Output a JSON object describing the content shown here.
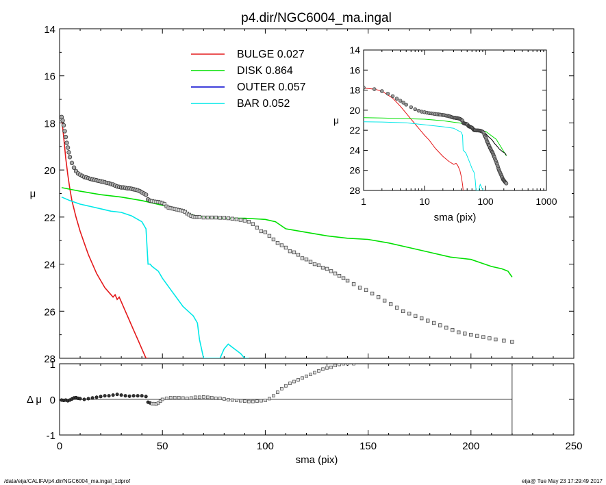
{
  "title": "p4.dir/NGC6004_ma.ingal",
  "footer_left": "/data/eija/CALIFA/p4.dir/NGC6004_ma.ingal_1dprof",
  "footer_right": "eija@  Tue May 23 17:29:49 2017",
  "chart_data": [
    {
      "id": "main",
      "type": "line",
      "xlabel": "",
      "ylabel": "μ",
      "xlim": [
        0,
        250
      ],
      "ylim": [
        28,
        14
      ],
      "yticks": [
        14,
        16,
        18,
        20,
        22,
        24,
        26,
        28
      ],
      "legend_position": "top-center",
      "series": [
        {
          "name": "BULGE",
          "fraction": "0.027",
          "color": "#e41a1c",
          "x": [
            1,
            2,
            3,
            4,
            5,
            6,
            8,
            10,
            12,
            14,
            16,
            18,
            20,
            22,
            24,
            26,
            27,
            28,
            29,
            30,
            32,
            34,
            36,
            38,
            40,
            42,
            43
          ],
          "y": [
            17.8,
            18.6,
            19.5,
            20.2,
            20.8,
            21.3,
            22.0,
            22.6,
            23.1,
            23.6,
            24.0,
            24.4,
            24.7,
            25.0,
            25.2,
            25.4,
            25.3,
            25.5,
            25.4,
            25.6,
            26.0,
            26.4,
            26.8,
            27.2,
            27.6,
            28.0,
            28.0
          ]
        },
        {
          "name": "DISK",
          "fraction": "0.864",
          "color": "#00e000",
          "x": [
            1,
            10,
            20,
            30,
            40,
            50,
            60,
            66,
            70,
            80,
            90,
            100,
            105,
            110,
            120,
            130,
            140,
            150,
            160,
            170,
            180,
            190,
            195,
            200,
            205,
            210,
            215,
            218,
            220
          ],
          "y": [
            20.75,
            20.9,
            21.05,
            21.15,
            21.3,
            21.5,
            21.75,
            21.95,
            22.0,
            22.05,
            22.05,
            22.1,
            22.2,
            22.5,
            22.65,
            22.8,
            22.9,
            22.95,
            23.1,
            23.3,
            23.5,
            23.7,
            23.75,
            23.8,
            23.95,
            24.1,
            24.2,
            24.3,
            24.55
          ]
        },
        {
          "name": "OUTER",
          "fraction": "0.057",
          "color": "#0000cd",
          "x": [],
          "y": []
        },
        {
          "name": "BAR",
          "fraction": "0.052",
          "color": "#00e8e8",
          "x": [
            1,
            5,
            10,
            15,
            20,
            25,
            30,
            35,
            40,
            42,
            43,
            44,
            45,
            48,
            50,
            55,
            60,
            65,
            67,
            68,
            70,
            72,
            75,
            78,
            80,
            82,
            85,
            88,
            90,
            92
          ],
          "y": [
            21.15,
            21.3,
            21.45,
            21.55,
            21.65,
            21.75,
            21.8,
            21.95,
            22.2,
            22.5,
            24.0,
            24.0,
            24.1,
            24.3,
            24.6,
            25.2,
            25.8,
            26.2,
            26.5,
            27.2,
            28.0,
            28.0,
            28.0,
            28.0,
            27.6,
            27.4,
            27.6,
            27.8,
            28.0,
            28.0
          ]
        }
      ],
      "observed": {
        "x": [
          1,
          1.5,
          2,
          2.5,
          3,
          3.5,
          4,
          4.5,
          5,
          6,
          7,
          8,
          9,
          10,
          11,
          12,
          13,
          14,
          15,
          16,
          17,
          18,
          19,
          20,
          21,
          22,
          23,
          24,
          25,
          26,
          27,
          28,
          29,
          30,
          31,
          32,
          33,
          34,
          35,
          36,
          37,
          38,
          39,
          40,
          41,
          42,
          43,
          44,
          45,
          46,
          47,
          48,
          49,
          50,
          51,
          52,
          53,
          54,
          55,
          56,
          57,
          58,
          59,
          60,
          61,
          62,
          63,
          64,
          65,
          66,
          67,
          68,
          70,
          72,
          74,
          76,
          78,
          80,
          82,
          84,
          86,
          88,
          90,
          92,
          94,
          96,
          98,
          100,
          102,
          104,
          106,
          108,
          110,
          112,
          114,
          116,
          118,
          120,
          122,
          124,
          126,
          128,
          130,
          132,
          134,
          136,
          138,
          140,
          143,
          146,
          149,
          152,
          155,
          158,
          161,
          164,
          167,
          170,
          173,
          176,
          179,
          182,
          185,
          188,
          191,
          194,
          197,
          200,
          203,
          206,
          209,
          212,
          216,
          220
        ],
        "y": [
          17.75,
          17.9,
          18.1,
          18.35,
          18.6,
          18.85,
          19.05,
          19.25,
          19.45,
          19.7,
          19.9,
          20.05,
          20.15,
          20.2,
          20.25,
          20.3,
          20.32,
          20.35,
          20.38,
          20.4,
          20.42,
          20.44,
          20.46,
          20.48,
          20.5,
          20.52,
          20.55,
          20.56,
          20.6,
          20.62,
          20.66,
          20.7,
          20.72,
          20.74,
          20.74,
          20.76,
          20.78,
          20.78,
          20.8,
          20.82,
          20.84,
          20.86,
          20.9,
          20.95,
          21.0,
          21.05,
          21.25,
          21.3,
          21.32,
          21.34,
          21.35,
          21.36,
          21.38,
          21.4,
          21.45,
          21.55,
          21.6,
          21.62,
          21.64,
          21.66,
          21.68,
          21.7,
          21.72,
          21.74,
          21.78,
          21.85,
          21.9,
          21.95,
          21.98,
          22.0,
          22.0,
          22.0,
          22.02,
          22.02,
          22.02,
          22.02,
          22.03,
          22.03,
          22.05,
          22.07,
          22.1,
          22.12,
          22.15,
          22.2,
          22.3,
          22.45,
          22.6,
          22.65,
          22.8,
          22.95,
          23.1,
          23.2,
          23.3,
          23.45,
          23.5,
          23.6,
          23.75,
          23.8,
          23.9,
          24.0,
          24.05,
          24.15,
          24.2,
          24.3,
          24.4,
          24.5,
          24.6,
          24.7,
          24.85,
          25.0,
          25.1,
          25.25,
          25.4,
          25.55,
          25.7,
          25.85,
          26.0,
          26.1,
          26.2,
          26.3,
          26.4,
          26.5,
          26.6,
          26.7,
          26.8,
          26.9,
          26.95,
          27.0,
          27.05,
          27.1,
          27.15,
          27.2,
          27.25,
          27.3
        ]
      }
    },
    {
      "id": "residual",
      "type": "scatter",
      "xlabel": "sma (pix)",
      "ylabel": "Δ μ",
      "xlim": [
        0,
        250
      ],
      "ylim": [
        -1,
        1
      ],
      "xticks": [
        0,
        50,
        100,
        150,
        200,
        250
      ],
      "yticks": [
        1,
        0,
        -1
      ],
      "x_end": 220,
      "x": [
        1,
        2,
        3,
        4,
        5,
        6,
        7,
        8,
        9,
        10,
        12,
        14,
        16,
        18,
        20,
        22,
        24,
        26,
        28,
        30,
        32,
        34,
        36,
        38,
        40,
        42,
        43,
        44,
        45,
        46,
        47,
        48,
        49,
        50,
        52,
        54,
        56,
        58,
        60,
        62,
        64,
        66,
        68,
        70,
        72,
        74,
        76,
        78,
        80,
        82,
        84,
        86,
        88,
        90,
        92,
        94,
        96,
        98,
        100,
        102,
        104,
        106,
        108,
        110,
        112,
        114,
        116,
        118,
        120,
        122,
        124,
        126,
        128,
        130,
        132,
        134,
        136,
        138,
        140,
        143
      ],
      "y": [
        -0.02,
        -0.03,
        -0.02,
        -0.04,
        -0.02,
        0.01,
        0.04,
        0.05,
        0.03,
        0.02,
        0.0,
        0.02,
        0.04,
        0.06,
        0.08,
        0.1,
        0.1,
        0.12,
        0.14,
        0.12,
        0.1,
        0.09,
        0.1,
        0.1,
        0.1,
        0.08,
        -0.08,
        -0.1,
        -0.12,
        -0.12,
        -0.13,
        -0.1,
        -0.05,
        0.0,
        0.03,
        0.05,
        0.05,
        0.05,
        0.04,
        0.03,
        0.04,
        0.06,
        0.06,
        0.07,
        0.06,
        0.05,
        0.03,
        0.03,
        0.01,
        -0.01,
        -0.02,
        -0.03,
        -0.04,
        -0.05,
        -0.06,
        -0.06,
        -0.05,
        -0.04,
        -0.03,
        0.02,
        0.1,
        0.2,
        0.3,
        0.38,
        0.45,
        0.5,
        0.55,
        0.6,
        0.65,
        0.7,
        0.75,
        0.8,
        0.85,
        0.88,
        0.9,
        0.95,
        0.98,
        1.0,
        1.0,
        1.0
      ]
    },
    {
      "id": "inset",
      "type": "line",
      "xscale": "log",
      "xlabel": "sma (pix)",
      "ylabel": "μ",
      "xlim": [
        1,
        1000
      ],
      "ylim": [
        28,
        14
      ],
      "xticks": [
        1,
        10,
        100,
        1000
      ],
      "yticks": [
        14,
        16,
        18,
        20,
        22,
        24,
        26,
        28
      ],
      "series": [
        {
          "color": "#e41a1c",
          "x": [
            1,
            1.5,
            2,
            3,
            4,
            5,
            6,
            8,
            10,
            12,
            15,
            20,
            25,
            30,
            33,
            35,
            38,
            40,
            42,
            43
          ],
          "y": [
            17.8,
            17.9,
            18.1,
            18.8,
            19.6,
            20.3,
            20.9,
            21.8,
            22.5,
            23.0,
            23.8,
            24.6,
            25.1,
            25.4,
            25.3,
            25.5,
            26.0,
            26.6,
            27.4,
            28.0
          ]
        },
        {
          "color": "#00e000",
          "x": [
            1,
            2,
            5,
            10,
            20,
            40,
            60,
            80,
            100,
            150,
            220
          ],
          "y": [
            20.75,
            20.78,
            20.85,
            20.9,
            21.05,
            21.3,
            21.75,
            22.05,
            22.1,
            22.9,
            24.55
          ]
        },
        {
          "color": "#00e8e8",
          "x": [
            1,
            2,
            5,
            10,
            20,
            30,
            40,
            42,
            43,
            45,
            48,
            55,
            60,
            65,
            68,
            70,
            75,
            78,
            80,
            82,
            85,
            88,
            92
          ],
          "y": [
            21.15,
            21.18,
            21.25,
            21.45,
            21.65,
            21.8,
            22.2,
            22.5,
            24.0,
            24.1,
            24.3,
            25.2,
            25.8,
            26.2,
            27.0,
            28.0,
            28.0,
            28.0,
            27.6,
            27.4,
            27.6,
            27.8,
            28.0
          ]
        },
        {
          "color": "#000000",
          "x": [
            100,
            110,
            120,
            130,
            140,
            150,
            160,
            170,
            180,
            190,
            200,
            210,
            220
          ],
          "y": [
            22.3,
            22.6,
            22.8,
            23.0,
            23.3,
            23.5,
            23.7,
            23.9,
            24.0,
            24.15,
            24.2,
            24.3,
            24.5
          ]
        }
      ]
    }
  ]
}
